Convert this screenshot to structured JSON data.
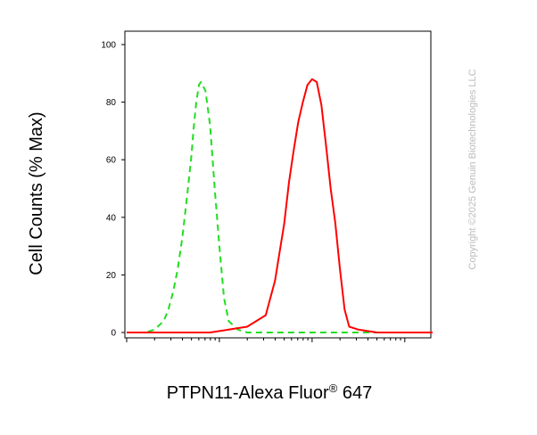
{
  "chart_data": {
    "type": "line",
    "xlabel": "PTPN11-Alexa Fluor",
    "xlabel_superscript": "®",
    "xlabel_suffix": " 647",
    "ylabel": "Cell Counts (% Max)",
    "ylim": [
      0,
      100
    ],
    "y_ticks": [
      "0",
      "20",
      "40",
      "60",
      "80",
      "100"
    ],
    "x_scale": "log",
    "x_decades": [
      0,
      1,
      2,
      3
    ],
    "series": [
      {
        "style": "dashed",
        "color": "#22dd22",
        "x": [
          0.0,
          0.1,
          0.2,
          0.3,
          0.4,
          0.45,
          0.5,
          0.55,
          0.6,
          0.65,
          0.7,
          0.72,
          0.75,
          0.78,
          0.8,
          0.85,
          0.9,
          0.95,
          1.0,
          1.05,
          1.1,
          1.2,
          1.3,
          1.5,
          2.0,
          2.5,
          3.0,
          3.3
        ],
        "y": [
          0,
          0,
          0,
          1,
          4,
          8,
          14,
          22,
          33,
          47,
          62,
          70,
          80,
          86,
          87,
          84,
          72,
          50,
          30,
          12,
          4,
          1,
          0,
          0,
          0,
          0,
          0,
          0
        ]
      },
      {
        "style": "solid",
        "color": "#ff0000",
        "x": [
          0.0,
          0.5,
          0.9,
          1.1,
          1.3,
          1.5,
          1.6,
          1.7,
          1.75,
          1.8,
          1.85,
          1.9,
          1.95,
          2.0,
          2.05,
          2.1,
          2.15,
          2.2,
          2.25,
          2.3,
          2.35,
          2.4,
          2.5,
          2.7,
          3.0,
          3.3
        ],
        "y": [
          0,
          0,
          0,
          1,
          2,
          6,
          18,
          38,
          52,
          63,
          73,
          80,
          86,
          88,
          87,
          79,
          65,
          50,
          38,
          22,
          8,
          2,
          1,
          0,
          0,
          0
        ]
      }
    ]
  },
  "watermark": "Copyright ©2025 Genuin Biotechnologies LLC"
}
